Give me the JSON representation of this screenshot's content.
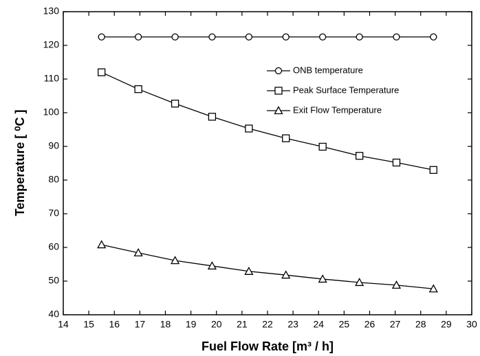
{
  "chart_data": {
    "type": "line",
    "x_label": "Fuel Flow Rate [m³ / h]",
    "y_label": "Temperature [ ⁰C ]",
    "x": [
      15.5,
      16.94,
      18.38,
      19.83,
      21.27,
      22.72,
      24.16,
      25.6,
      27.05,
      28.5
    ],
    "series": [
      {
        "name": "ONB temperature",
        "color": "#000000",
        "marker": "circle",
        "values": [
          122.5,
          122.5,
          122.5,
          122.5,
          122.5,
          122.5,
          122.5,
          122.5,
          122.5,
          122.5
        ]
      },
      {
        "name": "Peak Surface Temperature",
        "color": "#000000",
        "marker": "square",
        "values": [
          112.0,
          107.0,
          102.7,
          98.8,
          95.3,
          92.4,
          89.9,
          87.2,
          85.2,
          83.0
        ]
      },
      {
        "name": "Exit Flow Temperature",
        "color": "#000000",
        "marker": "triangle",
        "values": [
          60.8,
          58.4,
          56.1,
          54.5,
          52.9,
          51.8,
          50.6,
          49.6,
          48.8,
          47.7
        ]
      }
    ],
    "xlim": [
      14,
      30
    ],
    "xticks": [
      14,
      15,
      16,
      17,
      18,
      19,
      20,
      21,
      22,
      23,
      24,
      25,
      26,
      27,
      28,
      29,
      30
    ],
    "ylim": [
      40,
      130
    ],
    "yticks": [
      40,
      50,
      60,
      70,
      80,
      90,
      100,
      110,
      120,
      130
    ],
    "grid": false
  }
}
